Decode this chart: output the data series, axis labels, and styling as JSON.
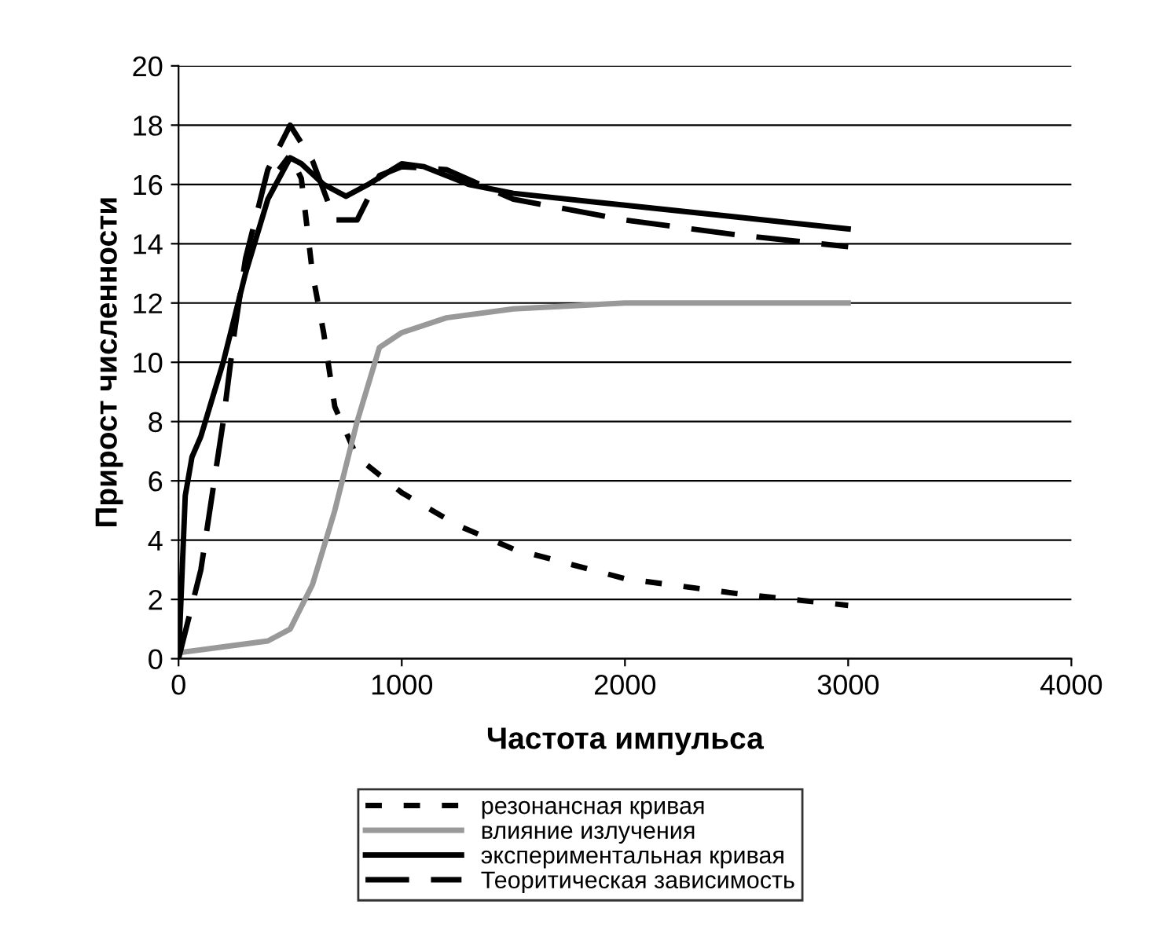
{
  "chart_data": {
    "type": "line",
    "xlabel": "Частота импульса",
    "ylabel": "Прирост численности",
    "xlim": [
      0,
      4000
    ],
    "xticks": [
      0,
      1000,
      2000,
      3000,
      4000
    ],
    "ylim": [
      0,
      20
    ],
    "yticks": [
      0,
      2,
      4,
      6,
      8,
      10,
      12,
      14,
      16,
      18,
      20
    ],
    "grid": "y",
    "legend": "bottom",
    "marker": "none",
    "series": [
      {
        "name": "резонансная кривая",
        "color": "#000000",
        "line_style": "dotted",
        "x": [
          450,
          500,
          550,
          600,
          650,
          700,
          800,
          1000,
          1250,
          1500,
          2000,
          2500,
          3000
        ],
        "values": [
          16.5,
          17,
          16.2,
          13,
          11,
          8.5,
          6.8,
          5.6,
          4.5,
          3.7,
          2.7,
          2.2,
          1.8
        ]
      },
      {
        "name": "влияние излучения",
        "color": "#999999",
        "line_style": "solid",
        "x": [
          0,
          200,
          400,
          500,
          600,
          700,
          800,
          900,
          1000,
          1200,
          1500,
          2000,
          2500,
          3000
        ],
        "values": [
          0.2,
          0.4,
          0.6,
          1.0,
          2.5,
          5,
          8,
          10.5,
          11,
          11.5,
          11.8,
          12,
          12,
          12
        ]
      },
      {
        "name": "экспериментальная кривая",
        "color": "#000000",
        "line_style": "solid",
        "x": [
          0,
          30,
          60,
          100,
          200,
          300,
          400,
          500,
          550,
          650,
          750,
          850,
          1000,
          1100,
          1300,
          1500,
          2000,
          2500,
          3000
        ],
        "values": [
          0,
          5.5,
          6.8,
          7.5,
          10,
          13,
          15.5,
          16.9,
          16.7,
          16,
          15.6,
          16,
          16.7,
          16.6,
          16,
          15.7,
          15.3,
          14.9,
          14.5
        ]
      },
      {
        "name": "Теоритическая зависимость",
        "color": "#000000",
        "line_style": "dashed",
        "x": [
          0,
          100,
          200,
          250,
          300,
          400,
          500,
          600,
          700,
          800,
          900,
          1000,
          1200,
          1500,
          2000,
          2500,
          3000
        ],
        "values": [
          0,
          3,
          8,
          11,
          13.5,
          16.5,
          18,
          16.8,
          14.8,
          14.8,
          16.3,
          16.6,
          16.5,
          15.5,
          14.8,
          14.3,
          13.9
        ]
      }
    ]
  }
}
